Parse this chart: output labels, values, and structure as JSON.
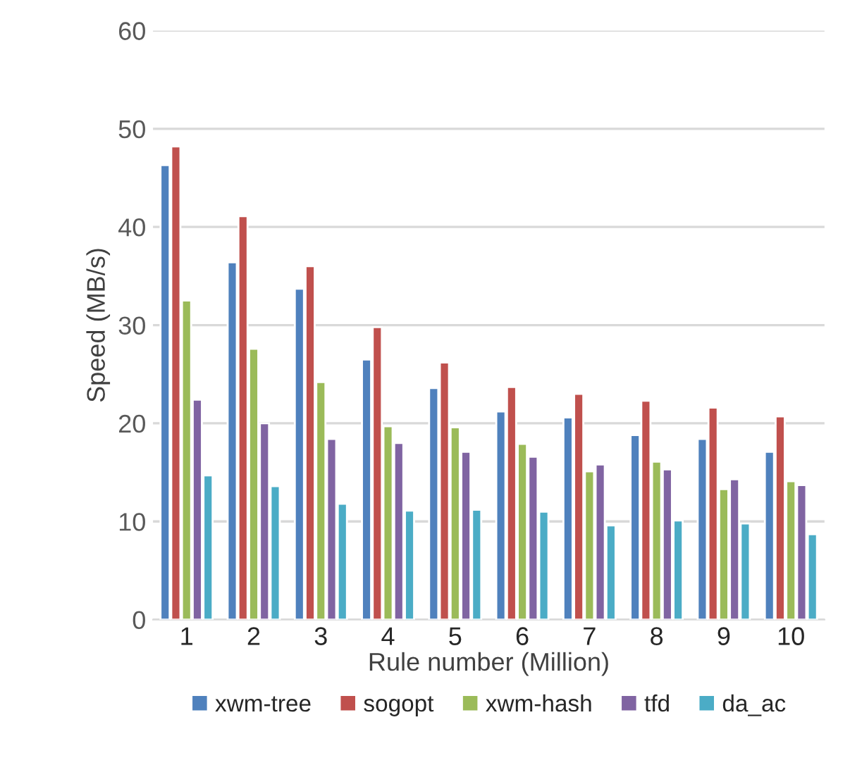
{
  "chart_data": {
    "type": "bar",
    "xlabel": "Rule number (Million)",
    "ylabel": "Speed (MB/s)",
    "categories": [
      "1",
      "2",
      "3",
      "4",
      "5",
      "6",
      "7",
      "8",
      "9",
      "10"
    ],
    "series": [
      {
        "name": "xwm-tree",
        "color": "#4f81bd",
        "values": [
          46.3,
          36.4,
          33.7,
          26.5,
          23.6,
          21.2,
          20.6,
          18.8,
          18.4,
          17.1
        ]
      },
      {
        "name": "sogopt",
        "color": "#c0504d",
        "values": [
          48.2,
          41.1,
          36.0,
          29.8,
          26.2,
          23.7,
          23.0,
          22.3,
          21.6,
          20.7
        ]
      },
      {
        "name": "xwm-hash",
        "color": "#9bbb59",
        "values": [
          32.5,
          27.6,
          24.2,
          19.7,
          19.6,
          17.9,
          15.1,
          16.1,
          13.3,
          14.1
        ]
      },
      {
        "name": "tfd",
        "color": "#8064a2",
        "values": [
          22.4,
          20.0,
          18.4,
          18.0,
          17.1,
          16.6,
          15.8,
          15.3,
          14.3,
          13.7
        ]
      },
      {
        "name": "da_ac",
        "color": "#4bacc6",
        "values": [
          14.7,
          13.6,
          11.8,
          11.1,
          11.2,
          11.0,
          9.6,
          10.1,
          9.8,
          8.7
        ]
      }
    ],
    "ylim": [
      0,
      60
    ],
    "yticks": [
      0,
      10,
      20,
      30,
      40,
      50,
      60
    ],
    "grid": "y",
    "legend": "bottom"
  }
}
